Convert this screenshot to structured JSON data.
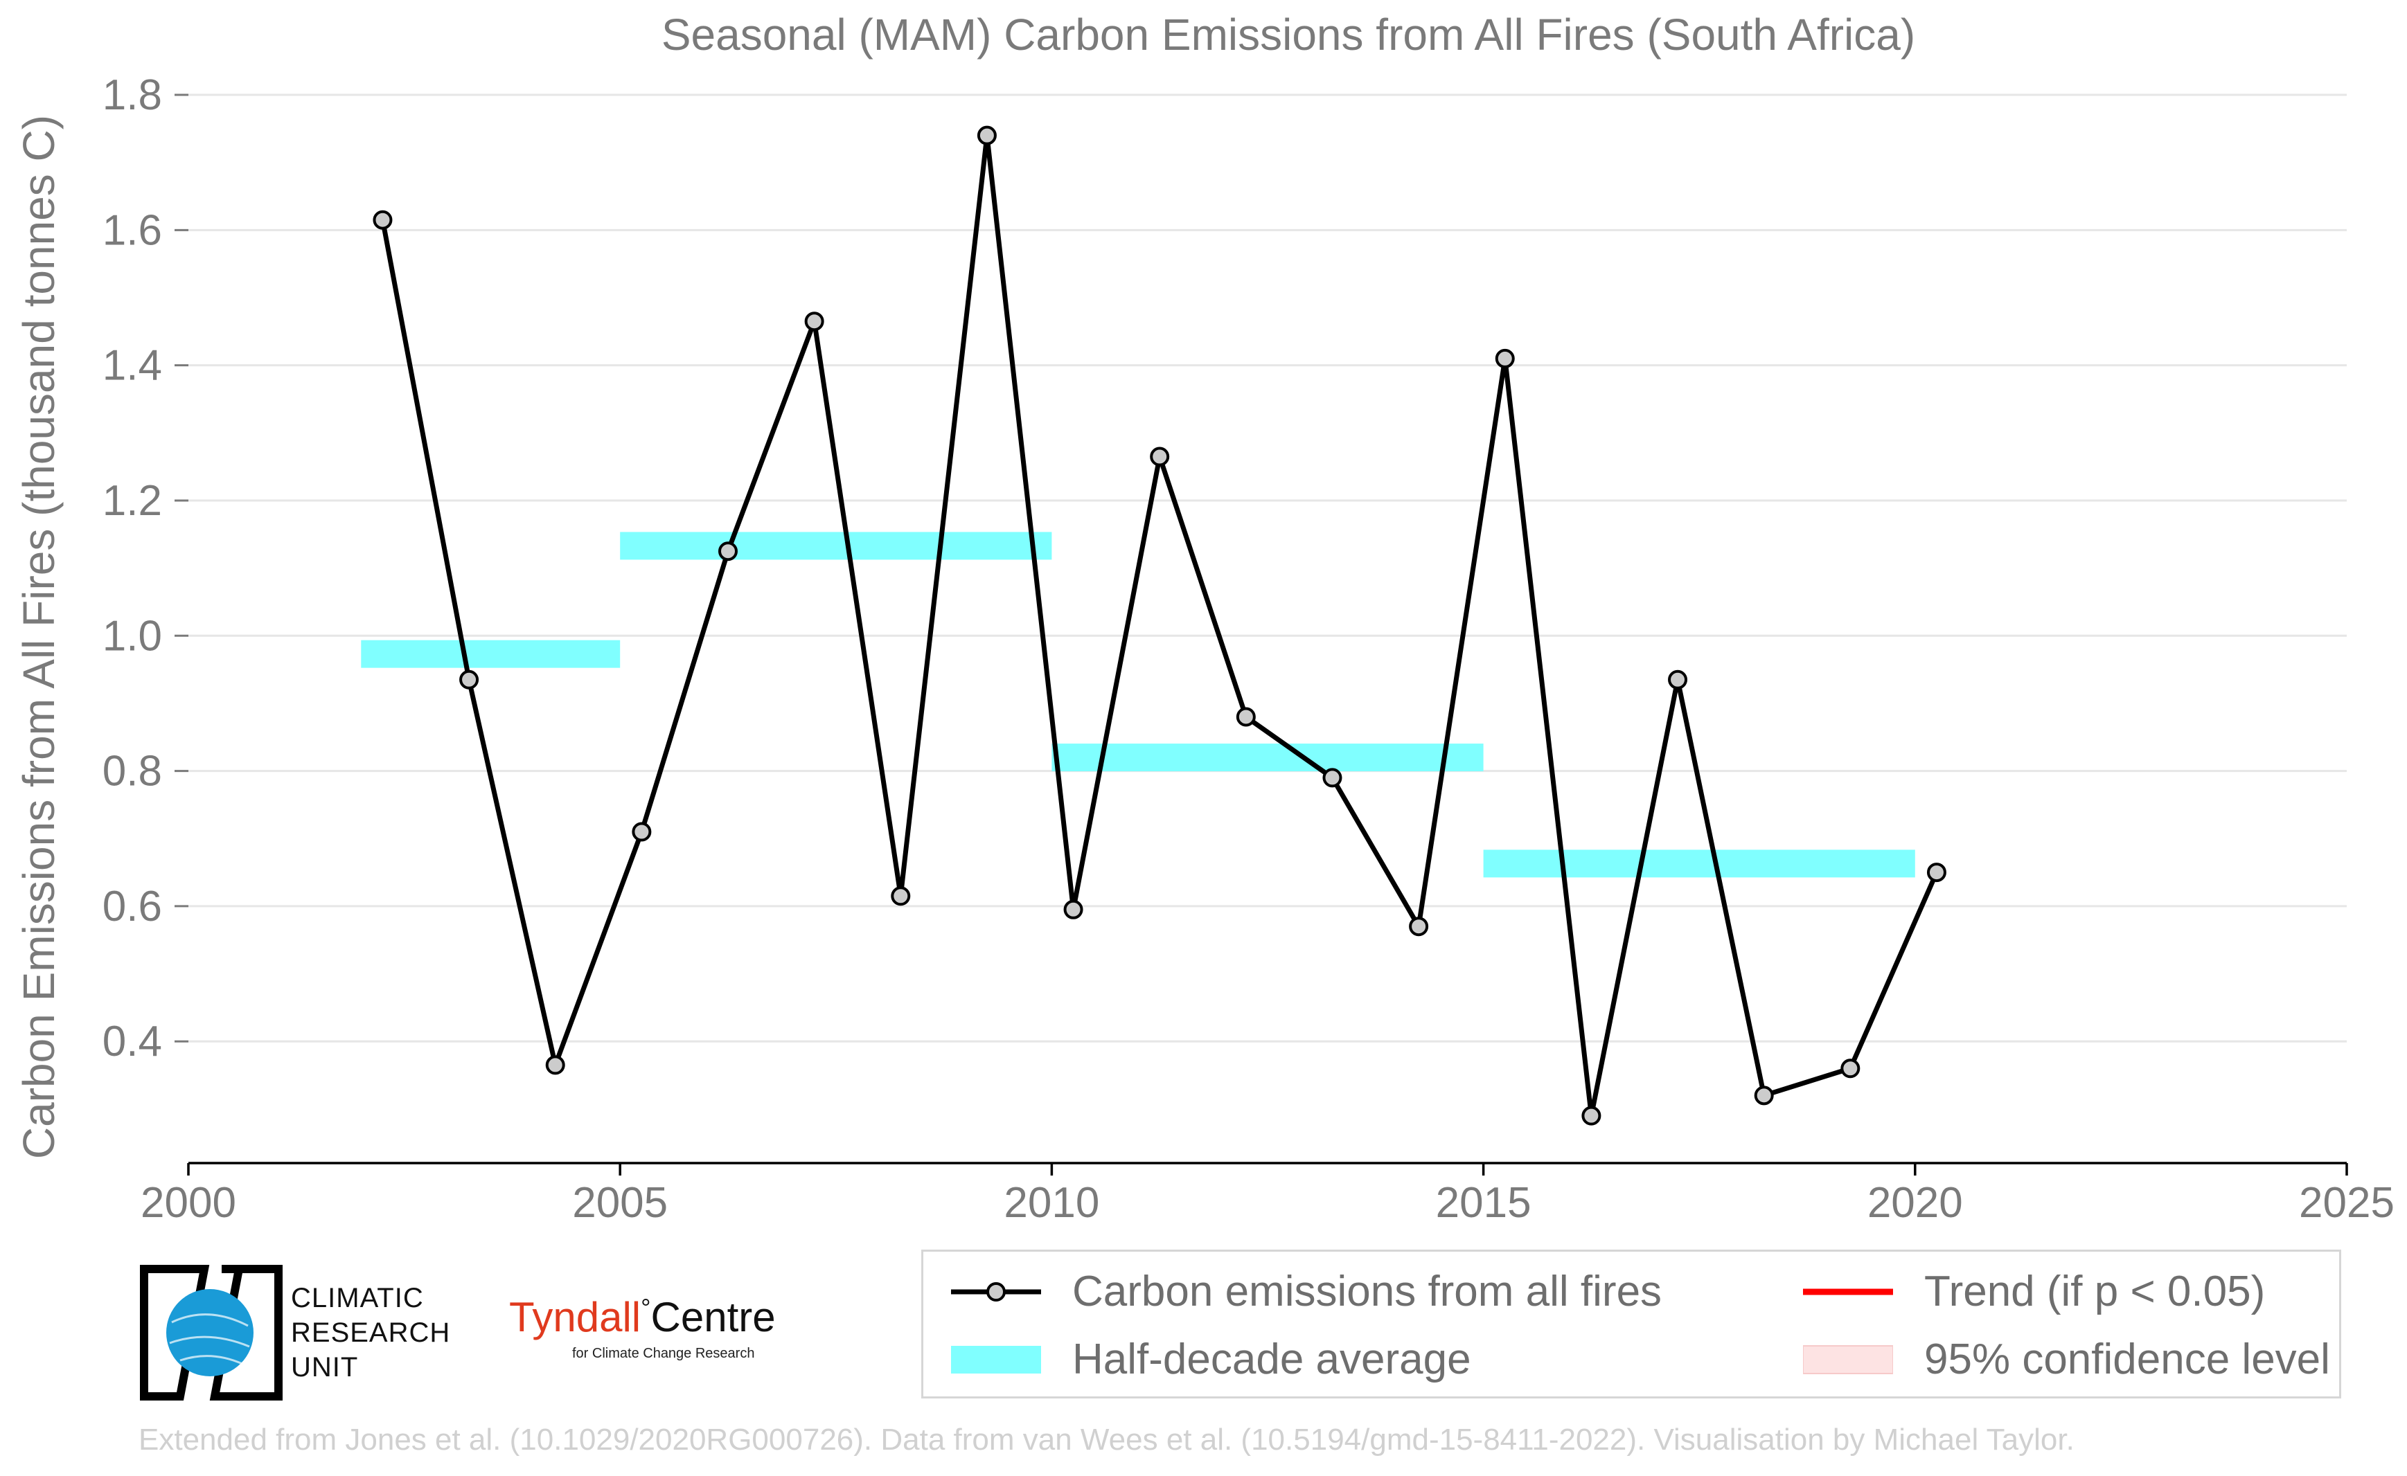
{
  "chart_data": {
    "type": "line",
    "title": "Seasonal (MAM) Carbon Emissions from All Fires (South Africa)",
    "ylabel": "Carbon Emissions from All Fires (thousand tonnes C)",
    "xlabel": "",
    "xlim": [
      2000,
      2025
    ],
    "ylim": [
      0.22,
      1.84
    ],
    "x_ticks": [
      "2000",
      "2005",
      "2010",
      "2015",
      "2020",
      "2025"
    ],
    "y_ticks": [
      "0.4",
      "0.6",
      "0.8",
      "1.0",
      "1.2",
      "1.4",
      "1.6",
      "1.8"
    ],
    "grid": "horizontal",
    "series": [
      {
        "name": "Carbon emissions from all fires",
        "color": "#000000",
        "marker_fill": "#cccccc",
        "x": [
          2002.25,
          2003.25,
          2004.25,
          2005.25,
          2006.25,
          2007.25,
          2008.25,
          2009.25,
          2010.25,
          2011.25,
          2012.25,
          2013.25,
          2014.25,
          2015.25,
          2016.25,
          2017.25,
          2018.25,
          2019.25,
          2020.25
        ],
        "values": [
          1.615,
          0.935,
          0.365,
          0.71,
          1.125,
          1.465,
          0.615,
          1.74,
          0.595,
          1.265,
          0.88,
          0.79,
          0.57,
          1.41,
          0.29,
          0.935,
          0.32,
          0.36,
          0.65
        ]
      }
    ],
    "half_decade_average": {
      "name": "Half-decade average",
      "color": "#80ffff",
      "segments": [
        {
          "x0": 2002,
          "x1": 2005,
          "value": 0.973
        },
        {
          "x0": 2005,
          "x1": 2010,
          "value": 1.133
        },
        {
          "x0": 2010,
          "x1": 2015,
          "value": 0.82
        },
        {
          "x0": 2015,
          "x1": 2020,
          "value": 0.663
        }
      ]
    },
    "legend": {
      "placement": "bottom-right",
      "entries": [
        {
          "label": "Carbon emissions from all fires",
          "kind": "line-marker",
          "color": "#000000"
        },
        {
          "label": "Trend (if p < 0.05)",
          "kind": "line",
          "color": "#ff0000"
        },
        {
          "label": "Half-decade average",
          "kind": "patch",
          "color": "#80ffff"
        },
        {
          "label": "95% confidence level",
          "kind": "patch",
          "color": "#fde3e3"
        }
      ]
    }
  },
  "logos": {
    "cru_lines": [
      "CLIMATIC",
      "RESEARCH",
      "UNIT"
    ],
    "tyndall_name": "Tyndall",
    "tyndall_degree": "°",
    "tyndall_centre": "Centre",
    "tyndall_sub": "for Climate Change Research"
  },
  "footer": "Extended from Jones et al. (10.1029/2020RG000726). Data from van Wees et al. (10.5194/gmd-15-8411-2022). Visualisation by Michael Taylor."
}
